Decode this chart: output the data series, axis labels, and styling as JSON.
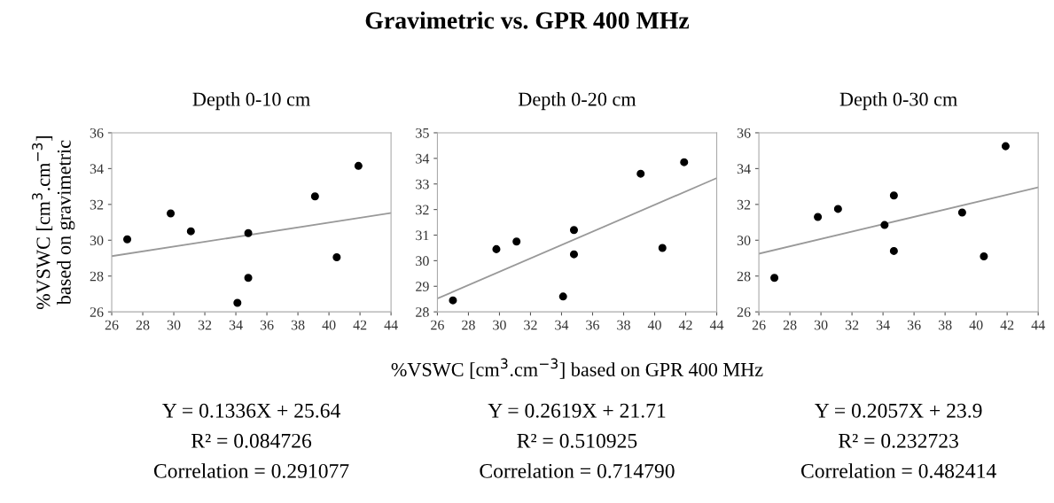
{
  "chart_data": [
    {
      "type": "scatter",
      "title": "Depth 0-10 cm",
      "ylabel": "%VSWC [cm$^{3}$.cm$^{−3}$]\nbased on gravimetric",
      "xlim": [
        26,
        44
      ],
      "xticks": [
        26,
        28,
        30,
        32,
        34,
        36,
        38,
        40,
        42,
        44
      ],
      "ylim": [
        26,
        36
      ],
      "yticks": [
        26,
        28,
        30,
        32,
        34,
        36
      ],
      "marker": "circle",
      "grid": false,
      "legend": false,
      "series": [
        {
          "color": "#000000",
          "x": [
            27.0,
            29.8,
            31.1,
            34.8,
            34.8,
            34.1,
            39.1,
            40.5,
            41.9
          ],
          "values": [
            30.05,
            31.5,
            30.5,
            30.4,
            27.9,
            26.5,
            32.45,
            29.05,
            34.15
          ]
        },
        {
          "type": "line",
          "marker": "none",
          "color": "#999999",
          "x": [
            26,
            44
          ],
          "values": [
            29.11,
            31.52
          ]
        }
      ],
      "annotations": [
        "Y = 0.1336X + 25.64",
        "R² = 0.084726",
        "Correlation = 0.291077"
      ]
    },
    {
      "type": "scatter",
      "title": "Depth 0-20 cm",
      "xlabel": "%VSWC [cm$^{3}$.cm$^{−3}$] based on GPR 400 MHz",
      "xlim": [
        26,
        44
      ],
      "xticks": [
        26,
        28,
        30,
        32,
        34,
        36,
        38,
        40,
        42,
        44
      ],
      "ylim": [
        28,
        35
      ],
      "yticks": [
        28,
        29,
        30,
        31,
        32,
        33,
        34,
        35
      ],
      "marker": "circle",
      "grid": false,
      "legend": false,
      "series": [
        {
          "color": "#000000",
          "x": [
            27.0,
            29.8,
            31.1,
            34.1,
            34.8,
            34.8,
            39.1,
            40.5,
            41.9
          ],
          "values": [
            28.45,
            30.45,
            30.75,
            28.6,
            31.2,
            30.25,
            33.4,
            30.5,
            33.85
          ]
        },
        {
          "type": "line",
          "marker": "none",
          "color": "#999999",
          "x": [
            26,
            44
          ],
          "values": [
            28.52,
            33.23
          ]
        }
      ],
      "annotations": [
        "Gravimetric vs. GPR 400 MHz",
        "Y = 0.2619X + 21.71",
        "R² = 0.510925",
        "Correlation = 0.714790"
      ]
    },
    {
      "type": "scatter",
      "title": "Depth 0-30 cm",
      "xlim": [
        26,
        44
      ],
      "xticks": [
        26,
        28,
        30,
        32,
        34,
        36,
        38,
        40,
        42,
        44
      ],
      "ylim": [
        26,
        36
      ],
      "yticks": [
        26,
        28,
        30,
        32,
        34,
        36
      ],
      "marker": "circle",
      "grid": false,
      "legend": false,
      "series": [
        {
          "color": "#000000",
          "x": [
            27.0,
            29.8,
            31.1,
            34.1,
            34.7,
            34.7,
            39.1,
            40.5,
            41.9
          ],
          "values": [
            27.9,
            31.3,
            31.75,
            30.85,
            32.5,
            29.4,
            31.55,
            29.1,
            35.25
          ]
        },
        {
          "type": "line",
          "marker": "none",
          "color": "#999999",
          "x": [
            26,
            44
          ],
          "values": [
            29.25,
            32.95
          ]
        }
      ],
      "annotations": [
        "Y = 0.2057X + 23.9",
        "R² = 0.232723",
        "Correlation = 0.482414"
      ]
    }
  ]
}
